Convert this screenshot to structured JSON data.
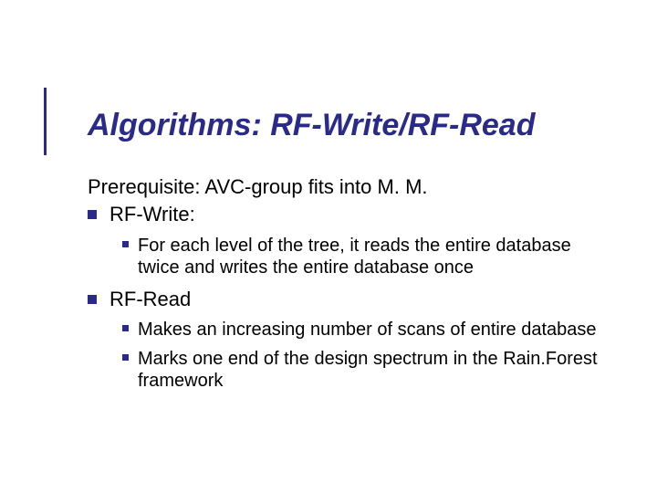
{
  "accent_color": "#2a2a8a",
  "text_color": "#000000",
  "title_fontsize": 34,
  "body_fontsize": 22,
  "sub_fontsize": 20,
  "title": "Algorithms: RF-Write/RF-Read",
  "prerequisite": "Prerequisite: AVC-group fits into M. M.",
  "items": [
    {
      "label": "RF-Write:",
      "children": [
        {
          "text": "For each level of the tree, it reads the entire database twice and writes the entire database once"
        }
      ]
    },
    {
      "label": "RF-Read",
      "children": [
        {
          "text": "Makes an increasing number of scans of entire database"
        },
        {
          "text": "Marks one end of the design spectrum in the Rain.Forest framework"
        }
      ]
    }
  ]
}
